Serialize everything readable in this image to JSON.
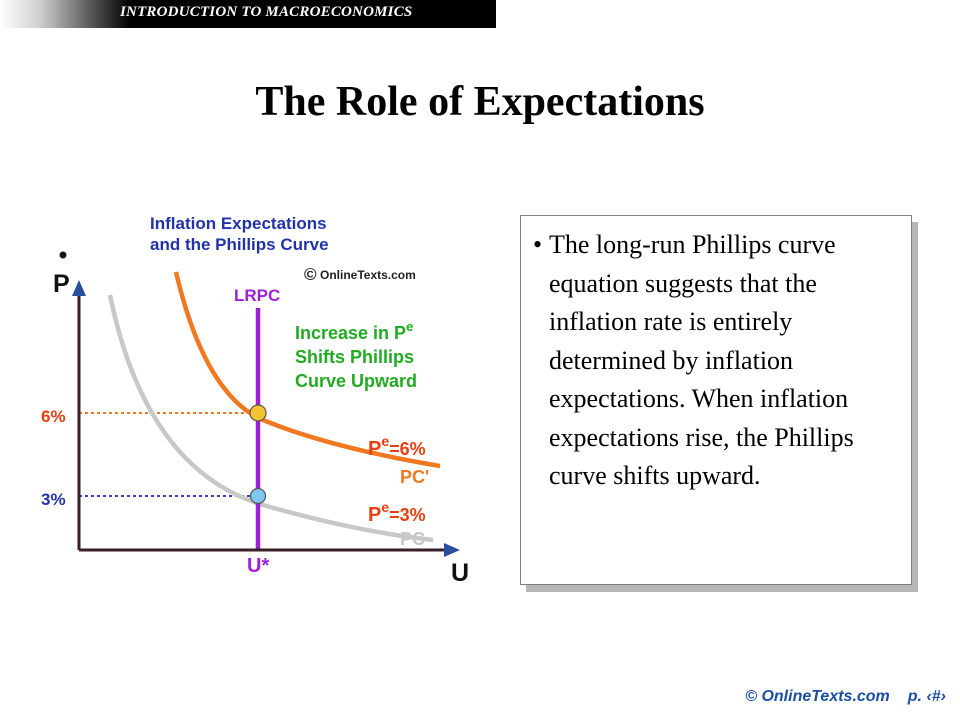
{
  "banner": {
    "course": "INTRODUCTION TO MACROECONOMICS"
  },
  "slide": {
    "title": "The Role of Expectations"
  },
  "figure": {
    "title_line1": "Inflation Expectations",
    "title_line2": "and the Phillips Curve",
    "watermark_symbol": "©",
    "watermark": "OnlineTexts.com",
    "y_axis_label": "P",
    "x_axis_label": "U",
    "lrpc_label": "LRPC",
    "note_line1": "Increase in P",
    "note_sup": "e",
    "note_line2": "Shifts Phillips",
    "note_line3": "Curve Upward",
    "tick_6": "6%",
    "tick_3": "3%",
    "u_star": "U*",
    "pe6_p": "P",
    "pe6_sup": "e",
    "pe6_value": "=6%",
    "pc_prime": "PC'",
    "pe3_p": "P",
    "pe3_sup": "e",
    "pe3_value": "=3%",
    "pc": "PC",
    "colors": {
      "title": "#2233aa",
      "axis": "#3a1f2a",
      "lrpc": "#a020d8",
      "pc_prime": "#f07820",
      "pc": "#c8c8c8",
      "note": "#22aa22",
      "point_6": "#f6c431",
      "point_3": "#7cc8f0",
      "tick_label": "#e64010",
      "dotted_6": "#f07820",
      "dotted_3": "#3344cc"
    }
  },
  "text_box": {
    "bullet": "•",
    "text": "The long-run Phillips curve equation suggests that the inflation rate is entirely determined by inflation expectations. When inflation expectations rise, the Phillips curve shifts upward."
  },
  "footer": {
    "copyright": "© OnlineTexts.com",
    "page": "p. ‹#›"
  }
}
